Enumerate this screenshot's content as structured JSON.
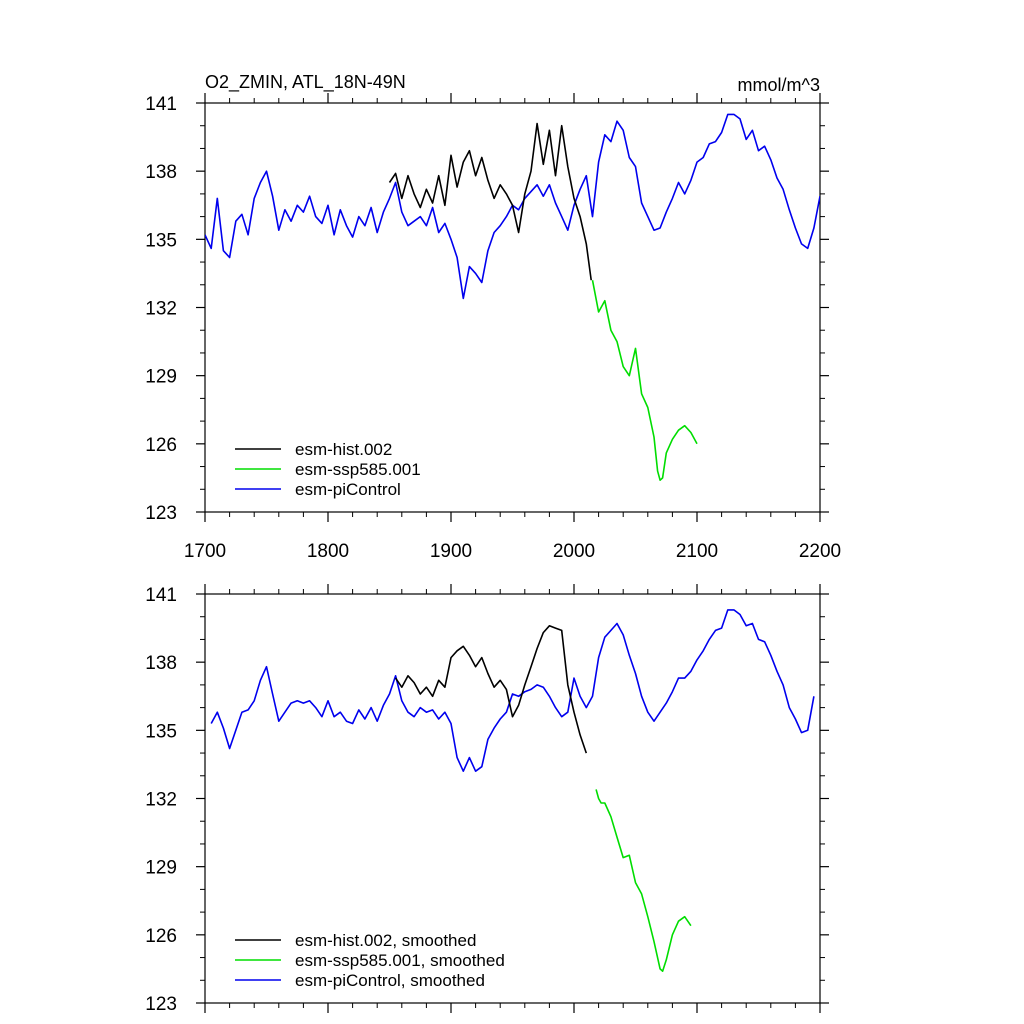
{
  "chart_data": [
    {
      "type": "line",
      "title": "O2_ZMIN, ATL_18N-49N",
      "units": "mmol/m^3",
      "xlim": [
        1700,
        2200
      ],
      "ylim": [
        123,
        141
      ],
      "xticks": [
        1700,
        1800,
        1900,
        2000,
        2100,
        2200
      ],
      "yticks": [
        123,
        126,
        129,
        132,
        135,
        138,
        141
      ],
      "x_tick_labels_shown": true,
      "legend_position": "bottom-left",
      "series": [
        {
          "name": "esm-hist.002",
          "color": "#000000",
          "x": [
            1850,
            1855,
            1860,
            1865,
            1870,
            1875,
            1880,
            1885,
            1890,
            1895,
            1900,
            1905,
            1910,
            1915,
            1920,
            1925,
            1930,
            1935,
            1940,
            1945,
            1950,
            1955,
            1960,
            1965,
            1970,
            1975,
            1980,
            1985,
            1990,
            1995,
            2000,
            2005,
            2010,
            2014
          ],
          "y": [
            137.5,
            137.9,
            136.8,
            137.8,
            137.0,
            136.4,
            137.2,
            136.6,
            137.8,
            136.5,
            138.7,
            137.3,
            138.4,
            138.9,
            137.8,
            138.6,
            137.6,
            136.8,
            137.4,
            137.0,
            136.5,
            135.3,
            137.0,
            138.0,
            140.1,
            138.3,
            139.8,
            137.8,
            140.0,
            138.2,
            136.8,
            136.0,
            134.8,
            133.2
          ]
        },
        {
          "name": "esm-ssp585.001",
          "color": "#00dd00",
          "x": [
            2015,
            2020,
            2025,
            2030,
            2035,
            2040,
            2045,
            2050,
            2055,
            2060,
            2065,
            2068,
            2070,
            2072,
            2075,
            2080,
            2085,
            2090,
            2095,
            2100
          ],
          "y": [
            133.2,
            131.8,
            132.3,
            131.0,
            130.5,
            129.4,
            129.0,
            130.2,
            128.2,
            127.6,
            126.3,
            124.8,
            124.4,
            124.5,
            125.6,
            126.2,
            126.6,
            126.8,
            126.5,
            126.0
          ]
        },
        {
          "name": "esm-piControl",
          "color": "#0000ee",
          "x": [
            1700,
            1705,
            1710,
            1715,
            1720,
            1725,
            1730,
            1735,
            1740,
            1745,
            1750,
            1755,
            1760,
            1765,
            1770,
            1775,
            1780,
            1785,
            1790,
            1795,
            1800,
            1805,
            1810,
            1815,
            1820,
            1825,
            1830,
            1835,
            1840,
            1845,
            1850,
            1855,
            1860,
            1865,
            1870,
            1875,
            1880,
            1885,
            1890,
            1895,
            1900,
            1905,
            1910,
            1915,
            1920,
            1925,
            1930,
            1935,
            1940,
            1945,
            1950,
            1955,
            1960,
            1965,
            1970,
            1975,
            1980,
            1985,
            1990,
            1995,
            2000,
            2005,
            2010,
            2015,
            2020,
            2025,
            2030,
            2035,
            2040,
            2045,
            2050,
            2055,
            2060,
            2065,
            2070,
            2075,
            2080,
            2085,
            2090,
            2095,
            2100,
            2105,
            2110,
            2115,
            2120,
            2125,
            2130,
            2135,
            2140,
            2145,
            2150,
            2155,
            2160,
            2165,
            2170,
            2175,
            2180,
            2185,
            2190,
            2195,
            2200
          ],
          "y": [
            135.2,
            134.6,
            136.8,
            134.5,
            134.2,
            135.8,
            136.1,
            135.2,
            136.8,
            137.5,
            138.0,
            136.9,
            135.4,
            136.3,
            135.8,
            136.5,
            136.2,
            136.9,
            136.0,
            135.7,
            136.5,
            135.2,
            136.3,
            135.6,
            135.1,
            136.0,
            135.6,
            136.4,
            135.3,
            136.2,
            136.8,
            137.5,
            136.2,
            135.6,
            135.8,
            136.0,
            135.6,
            136.4,
            135.3,
            135.7,
            135.0,
            134.2,
            132.4,
            133.8,
            133.5,
            133.1,
            134.5,
            135.3,
            135.6,
            136.0,
            136.5,
            136.3,
            136.8,
            137.1,
            137.4,
            136.9,
            137.4,
            136.6,
            136.0,
            135.4,
            136.5,
            137.2,
            137.8,
            136.0,
            138.4,
            139.6,
            139.3,
            140.2,
            139.8,
            138.6,
            138.2,
            136.6,
            136.0,
            135.4,
            135.5,
            136.2,
            136.8,
            137.5,
            137.0,
            137.6,
            138.4,
            138.6,
            139.2,
            139.3,
            139.7,
            140.5,
            140.5,
            140.3,
            139.4,
            139.8,
            138.9,
            139.1,
            138.5,
            137.7,
            137.2,
            136.3,
            135.5,
            134.8,
            134.6,
            135.5,
            136.9
          ]
        }
      ]
    },
    {
      "type": "line",
      "title": "",
      "units": "",
      "xlim": [
        1700,
        2200
      ],
      "ylim": [
        123,
        141
      ],
      "xticks": [
        1700,
        1800,
        1900,
        2000,
        2100,
        2200
      ],
      "yticks": [
        123,
        126,
        129,
        132,
        135,
        138,
        141
      ],
      "x_tick_labels_shown": false,
      "legend_position": "bottom-left",
      "series": [
        {
          "name": "esm-hist.002, smoothed",
          "color": "#000000",
          "x": [
            1855,
            1860,
            1865,
            1870,
            1875,
            1880,
            1885,
            1890,
            1895,
            1900,
            1905,
            1910,
            1915,
            1920,
            1925,
            1930,
            1935,
            1940,
            1945,
            1950,
            1955,
            1960,
            1965,
            1970,
            1975,
            1980,
            1985,
            1990,
            1995,
            2000,
            2005,
            2010
          ],
          "y": [
            137.3,
            136.9,
            137.4,
            137.1,
            136.6,
            136.9,
            136.5,
            137.2,
            136.9,
            138.2,
            138.5,
            138.7,
            138.3,
            137.8,
            138.2,
            137.5,
            136.9,
            137.2,
            136.8,
            135.6,
            136.1,
            137.0,
            137.8,
            138.6,
            139.3,
            139.6,
            139.5,
            139.4,
            137.0,
            135.8,
            134.8,
            134.0
          ]
        },
        {
          "name": "esm-ssp585.001, smoothed",
          "color": "#00dd00",
          "x": [
            2018,
            2020,
            2022,
            2025,
            2030,
            2035,
            2040,
            2045,
            2050,
            2055,
            2060,
            2065,
            2070,
            2072,
            2075,
            2080,
            2085,
            2090,
            2095
          ],
          "y": [
            132.4,
            132.0,
            131.8,
            131.8,
            131.2,
            130.3,
            129.4,
            129.5,
            128.3,
            127.8,
            126.8,
            125.7,
            124.5,
            124.4,
            124.9,
            126.0,
            126.6,
            126.8,
            126.4
          ]
        },
        {
          "name": "esm-piControl, smoothed",
          "color": "#0000ee",
          "x": [
            1705,
            1710,
            1715,
            1720,
            1725,
            1730,
            1735,
            1740,
            1745,
            1750,
            1755,
            1760,
            1765,
            1770,
            1775,
            1780,
            1785,
            1790,
            1795,
            1800,
            1805,
            1810,
            1815,
            1820,
            1825,
            1830,
            1835,
            1840,
            1845,
            1850,
            1855,
            1860,
            1865,
            1870,
            1875,
            1880,
            1885,
            1890,
            1895,
            1900,
            1905,
            1910,
            1915,
            1920,
            1925,
            1930,
            1935,
            1940,
            1945,
            1950,
            1955,
            1960,
            1965,
            1970,
            1975,
            1980,
            1985,
            1990,
            1995,
            2000,
            2005,
            2010,
            2015,
            2020,
            2025,
            2030,
            2035,
            2040,
            2045,
            2050,
            2055,
            2060,
            2065,
            2070,
            2075,
            2080,
            2085,
            2090,
            2095,
            2100,
            2105,
            2110,
            2115,
            2120,
            2125,
            2130,
            2135,
            2140,
            2145,
            2150,
            2155,
            2160,
            2165,
            2170,
            2175,
            2180,
            2185,
            2190,
            2195
          ],
          "y": [
            135.3,
            135.8,
            135.1,
            134.2,
            135.0,
            135.8,
            135.9,
            136.3,
            137.2,
            137.8,
            136.6,
            135.4,
            135.8,
            136.2,
            136.3,
            136.2,
            136.3,
            136.0,
            135.6,
            136.3,
            135.6,
            135.8,
            135.4,
            135.3,
            135.9,
            135.5,
            136.0,
            135.4,
            136.1,
            136.6,
            137.4,
            136.3,
            135.8,
            135.6,
            136.0,
            135.8,
            135.9,
            135.5,
            135.8,
            135.3,
            133.8,
            133.2,
            133.8,
            133.2,
            133.4,
            134.6,
            135.1,
            135.5,
            135.8,
            136.6,
            136.5,
            136.7,
            136.8,
            137.0,
            136.9,
            136.5,
            136.0,
            135.6,
            135.8,
            137.3,
            136.5,
            136.0,
            136.5,
            138.2,
            139.1,
            139.4,
            139.7,
            139.2,
            138.3,
            137.5,
            136.5,
            135.8,
            135.4,
            135.8,
            136.2,
            136.7,
            137.3,
            137.3,
            137.6,
            138.1,
            138.5,
            139.0,
            139.4,
            139.5,
            140.3,
            140.3,
            140.1,
            139.6,
            139.7,
            139.0,
            138.9,
            138.3,
            137.6,
            137.0,
            136.0,
            135.5,
            134.9,
            135.0,
            136.5
          ]
        }
      ]
    }
  ]
}
